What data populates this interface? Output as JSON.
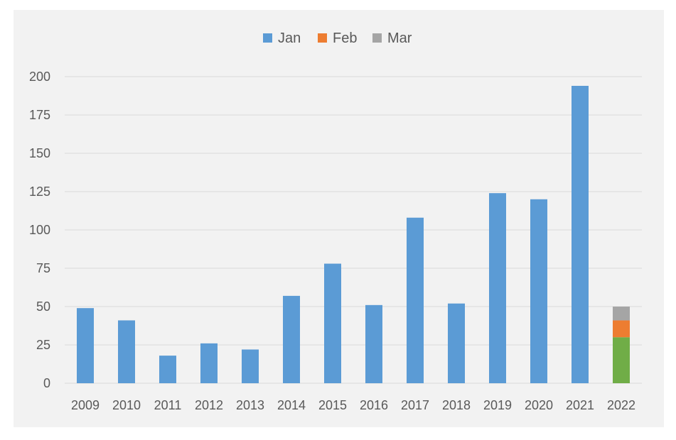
{
  "chart_data": {
    "type": "bar",
    "categories": [
      "2009",
      "2010",
      "2011",
      "2012",
      "2013",
      "2014",
      "2015",
      "2016",
      "2017",
      "2018",
      "2019",
      "2020",
      "2021",
      "2022"
    ],
    "series": [
      {
        "name": "Jan",
        "color": "#5b9bd5",
        "values": [
          49,
          41,
          18,
          26,
          22,
          57,
          78,
          51,
          108,
          52,
          124,
          120,
          194,
          null
        ]
      },
      {
        "name": "Feb",
        "color": "#ed7d31",
        "values": [
          null,
          null,
          null,
          null,
          null,
          null,
          null,
          null,
          null,
          null,
          null,
          null,
          null,
          11
        ]
      },
      {
        "name": "Mar",
        "color": "#a5a5a5",
        "values": [
          null,
          null,
          null,
          null,
          null,
          null,
          null,
          null,
          null,
          null,
          null,
          null,
          null,
          9
        ]
      }
    ],
    "extra_segment": {
      "category": "2022",
      "value": 30,
      "color": "#70ad47"
    },
    "stacked": true,
    "ylim": [
      0,
      200
    ],
    "yticks": [
      "0",
      "25",
      "50",
      "75",
      "100",
      "125",
      "150",
      "175",
      "200"
    ],
    "ytick_values": [
      0,
      25,
      50,
      75,
      100,
      125,
      150,
      175,
      200
    ],
    "grid": true,
    "legend_position": "top-center",
    "title": "",
    "xlabel": "",
    "ylabel": ""
  }
}
